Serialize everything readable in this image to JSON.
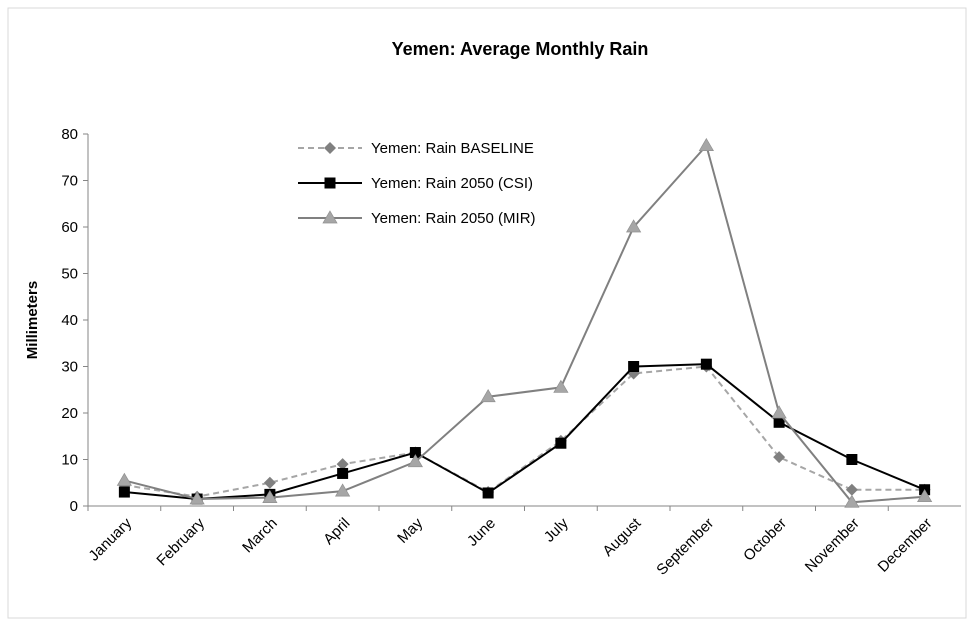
{
  "chart_data": {
    "type": "line",
    "title": "Yemen: Average Monthly Rain",
    "y_label": "Millimeters",
    "categories": [
      "January",
      "February",
      "March",
      "April",
      "May",
      "June",
      "July",
      "August",
      "September",
      "October",
      "November",
      "December"
    ],
    "series": [
      {
        "name": "Yemen: Rain BASELINE",
        "color": "#a6a6a6",
        "marker_color": "#808080",
        "marker": "diamond",
        "dash": true,
        "values": [
          4.5,
          2,
          5,
          9,
          11.5,
          3,
          14,
          28.5,
          30,
          10.5,
          3.5,
          3.5
        ]
      },
      {
        "name": "Yemen: Rain 2050 (CSI)",
        "color": "#000000",
        "marker_color": "#000000",
        "marker": "square",
        "dash": false,
        "values": [
          3,
          1.5,
          2.5,
          7,
          11.5,
          2.8,
          13.5,
          30,
          30.5,
          18,
          10,
          3.5
        ]
      },
      {
        "name": "Yemen: Rain 2050 (MIR)",
        "color": "#808080",
        "marker_color": "#a6a6a6",
        "marker": "triangle",
        "dash": false,
        "values": [
          5.5,
          1.5,
          1.8,
          3.2,
          9.5,
          23.5,
          25.5,
          60,
          77.5,
          20,
          0.8,
          2
        ]
      }
    ],
    "ylim": [
      0,
      80
    ],
    "yticks": [
      0,
      10,
      20,
      30,
      40,
      50,
      60,
      70,
      80
    ],
    "legend": "top-center"
  }
}
